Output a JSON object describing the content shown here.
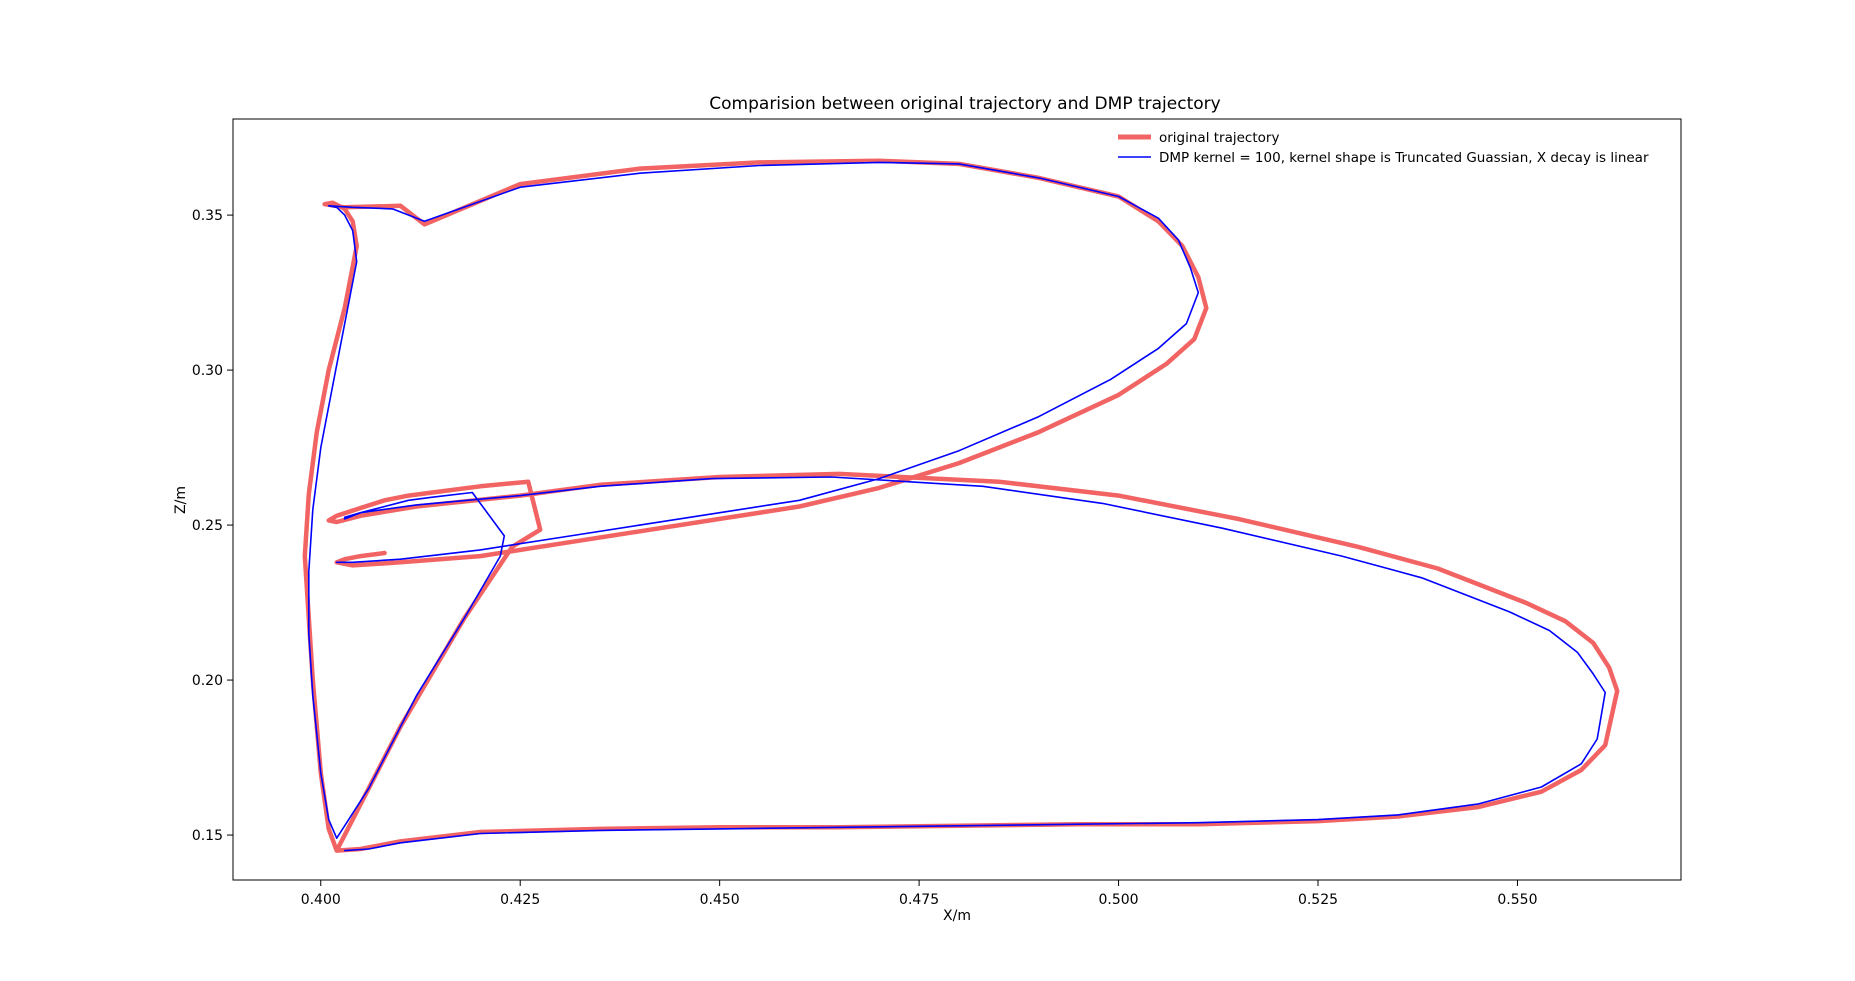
{
  "chart_data": {
    "type": "line",
    "title": "Comparision between original trajectory and DMP trajectory",
    "xlabel": "X/m",
    "ylabel": "Z/m",
    "xlim": [
      0.389,
      0.5705
    ],
    "ylim": [
      0.1355,
      0.381
    ],
    "xticks": [
      "0.400",
      "0.425",
      "0.450",
      "0.475",
      "0.500",
      "0.525",
      "0.550"
    ],
    "yticks": [
      "0.15",
      "0.20",
      "0.25",
      "0.30",
      "0.35"
    ],
    "grid": false,
    "legend_position": "top-right",
    "series": [
      {
        "name": "original trajectory",
        "color": "#f26464",
        "linewidth": "thick",
        "x": [
          0.402,
          0.405,
          0.41,
          0.42,
          0.435,
          0.45,
          0.465,
          0.48,
          0.495,
          0.51,
          0.525,
          0.535,
          0.545,
          0.553,
          0.558,
          0.561,
          0.5625,
          0.5615,
          0.5595,
          0.556,
          0.551,
          0.545,
          0.54,
          0.53,
          0.515,
          0.5,
          0.485,
          0.465,
          0.45,
          0.435,
          0.425,
          0.412,
          0.405,
          0.402,
          0.401,
          0.402,
          0.405,
          0.408,
          0.411,
          0.414,
          0.42,
          0.426,
          0.4275,
          0.424,
          0.418,
          0.41,
          0.405,
          0.402,
          0.401,
          0.4,
          0.399,
          0.3985,
          0.398,
          0.3985,
          0.3995,
          0.401,
          0.403,
          0.4045,
          0.404,
          0.403,
          0.4015,
          0.4005,
          0.403,
          0.41,
          0.413,
          0.425,
          0.44,
          0.455,
          0.47,
          0.48,
          0.49,
          0.5,
          0.505,
          0.508,
          0.51,
          0.511,
          0.5095,
          0.506,
          0.5,
          0.49,
          0.48,
          0.47,
          0.46,
          0.45,
          0.44,
          0.43,
          0.42,
          0.41,
          0.404,
          0.402,
          0.403,
          0.405,
          0.408
        ],
        "y": [
          0.145,
          0.1455,
          0.148,
          0.151,
          0.152,
          0.1525,
          0.1525,
          0.153,
          0.1535,
          0.1535,
          0.1545,
          0.156,
          0.159,
          0.164,
          0.171,
          0.179,
          0.1965,
          0.204,
          0.212,
          0.219,
          0.225,
          0.231,
          0.236,
          0.243,
          0.252,
          0.2595,
          0.264,
          0.2665,
          0.2655,
          0.263,
          0.2595,
          0.256,
          0.253,
          0.251,
          0.2515,
          0.253,
          0.2555,
          0.258,
          0.2595,
          0.2605,
          0.2625,
          0.264,
          0.2485,
          0.243,
          0.22,
          0.185,
          0.16,
          0.145,
          0.152,
          0.17,
          0.2,
          0.22,
          0.24,
          0.26,
          0.28,
          0.3,
          0.32,
          0.34,
          0.348,
          0.352,
          0.354,
          0.3535,
          0.3525,
          0.353,
          0.347,
          0.36,
          0.365,
          0.367,
          0.3675,
          0.3665,
          0.362,
          0.356,
          0.348,
          0.34,
          0.33,
          0.32,
          0.31,
          0.302,
          0.292,
          0.28,
          0.27,
          0.262,
          0.256,
          0.252,
          0.248,
          0.244,
          0.24,
          0.238,
          0.237,
          0.238,
          0.239,
          0.24,
          0.241
        ]
      },
      {
        "name": "DMP kernel = 100, kernel shape is Truncated Guassian, X decay is linear",
        "color": "#0000ff",
        "linewidth": "thin",
        "x": [
          0.403,
          0.406,
          0.41,
          0.42,
          0.435,
          0.45,
          0.465,
          0.48,
          0.495,
          0.51,
          0.525,
          0.535,
          0.545,
          0.553,
          0.558,
          0.56,
          0.561,
          0.5595,
          0.5575,
          0.554,
          0.549,
          0.543,
          0.538,
          0.528,
          0.513,
          0.498,
          0.483,
          0.464,
          0.449,
          0.435,
          0.425,
          0.412,
          0.405,
          0.403,
          0.403,
          0.405,
          0.408,
          0.411,
          0.414,
          0.419,
          0.423,
          0.4225,
          0.418,
          0.412,
          0.406,
          0.402,
          0.401,
          0.4,
          0.399,
          0.3985,
          0.3985,
          0.399,
          0.4,
          0.4015,
          0.403,
          0.4045,
          0.404,
          0.403,
          0.402,
          0.401,
          0.404,
          0.409,
          0.413,
          0.425,
          0.44,
          0.455,
          0.47,
          0.48,
          0.49,
          0.5,
          0.505,
          0.5075,
          0.509,
          0.51,
          0.5085,
          0.505,
          0.499,
          0.49,
          0.48,
          0.47,
          0.46,
          0.45,
          0.44,
          0.43,
          0.42,
          0.41,
          0.404,
          0.402
        ],
        "y": [
          0.145,
          0.1455,
          0.1475,
          0.1505,
          0.1515,
          0.152,
          0.1525,
          0.153,
          0.1535,
          0.154,
          0.155,
          0.1565,
          0.16,
          0.1655,
          0.173,
          0.181,
          0.196,
          0.202,
          0.209,
          0.216,
          0.222,
          0.228,
          0.233,
          0.24,
          0.249,
          0.257,
          0.2625,
          0.2655,
          0.265,
          0.2625,
          0.2595,
          0.2565,
          0.254,
          0.252,
          0.2525,
          0.254,
          0.256,
          0.258,
          0.259,
          0.2605,
          0.2465,
          0.24,
          0.22,
          0.195,
          0.165,
          0.149,
          0.155,
          0.17,
          0.195,
          0.215,
          0.235,
          0.255,
          0.275,
          0.295,
          0.315,
          0.335,
          0.345,
          0.35,
          0.3525,
          0.353,
          0.3525,
          0.352,
          0.348,
          0.359,
          0.3635,
          0.366,
          0.367,
          0.3665,
          0.362,
          0.356,
          0.349,
          0.342,
          0.333,
          0.325,
          0.315,
          0.307,
          0.297,
          0.285,
          0.274,
          0.265,
          0.258,
          0.254,
          0.25,
          0.246,
          0.242,
          0.239,
          0.238,
          0.238
        ]
      }
    ]
  }
}
